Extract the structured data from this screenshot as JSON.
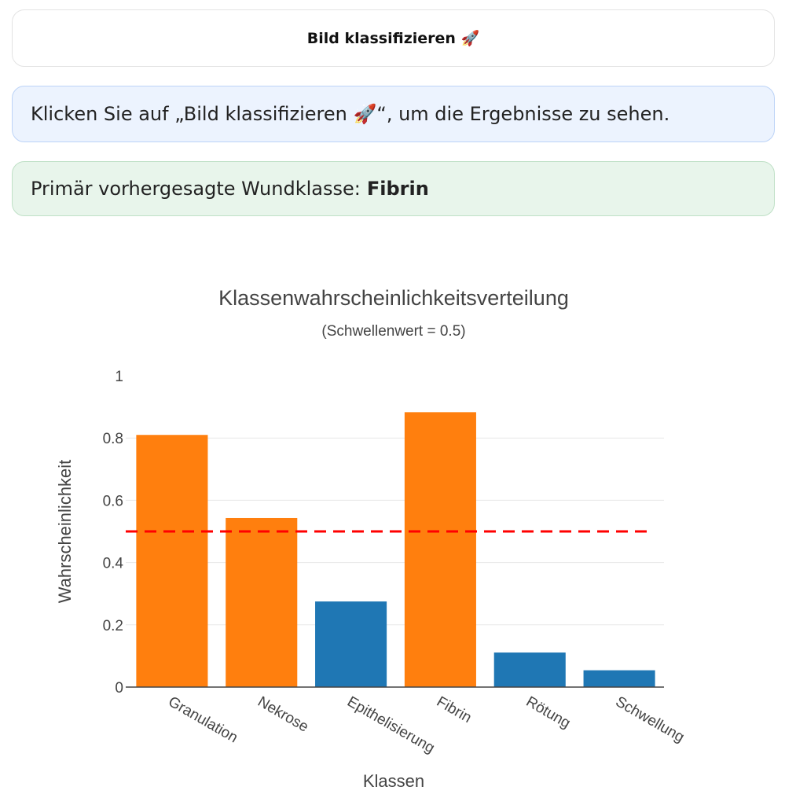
{
  "button": {
    "label": "Bild klassifizieren 🚀"
  },
  "info": {
    "text": "Klicken Sie auf „Bild klassifizieren 🚀“, um die Ergebnisse zu sehen."
  },
  "result": {
    "label": "Primär vorhergesagte Wundklasse:",
    "value": "Fibrin"
  },
  "chart_data": {
    "type": "bar",
    "title": "Klassenwahrscheinlichkeitsverteilung",
    "subtitle": "(Schwellenwert = 0.5)",
    "xlabel": "Klassen",
    "ylabel": "Wahrscheinlichkeit",
    "categories": [
      "Granulation",
      "Nekrose",
      "Epithelisierung",
      "Fibrin",
      "Rötung",
      "Schwellung"
    ],
    "values": [
      0.81,
      0.543,
      0.275,
      0.883,
      0.111,
      0.054
    ],
    "ylim": [
      0,
      1
    ],
    "yticks": [
      0,
      0.2,
      0.4,
      0.6,
      0.8,
      1
    ],
    "ytick_labels": [
      "0",
      "0.2",
      "0.4",
      "0.6",
      "0.8",
      "1"
    ],
    "threshold": 0.5,
    "colors": {
      "above": "#ff7f0e",
      "below": "#1f77b4",
      "threshold": "#ff0000",
      "grid": "#e8e8e8"
    },
    "grid": true
  }
}
